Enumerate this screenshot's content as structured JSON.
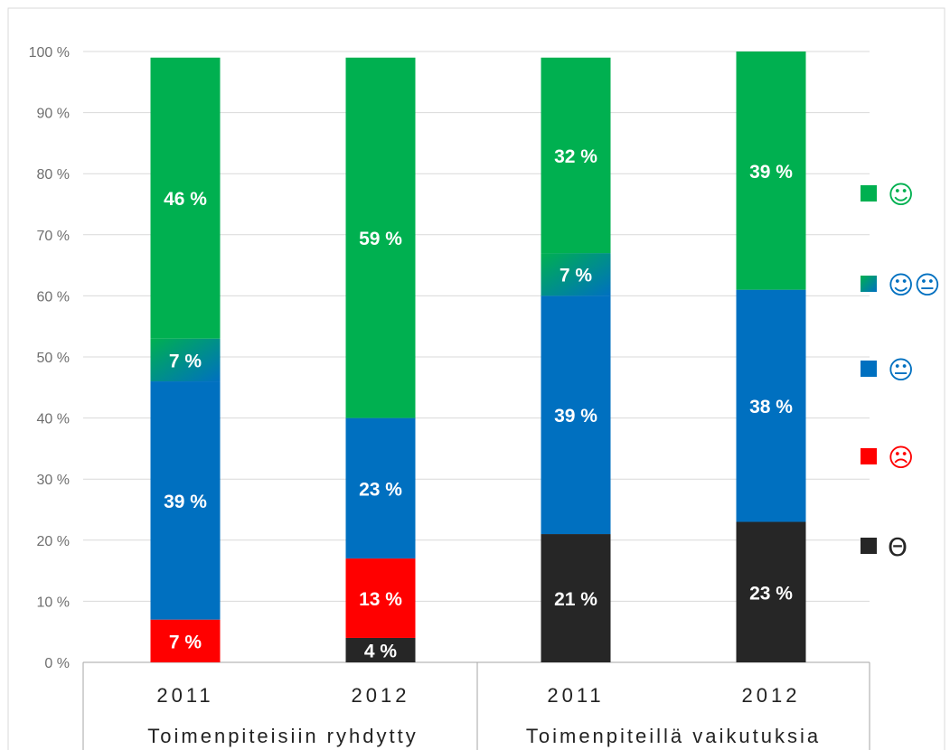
{
  "chart_data": {
    "type": "bar",
    "stacked": true,
    "ylim": [
      0,
      100
    ],
    "yticks": [
      "0 %",
      "10 %",
      "20 %",
      "30 %",
      "40 %",
      "50 %",
      "60 %",
      "70 %",
      "80 %",
      "90 %",
      "100 %"
    ],
    "grid": true,
    "legend_placement": "right",
    "categories": [
      "2011",
      "2012",
      "2011",
      "2012"
    ],
    "groups": [
      {
        "label": "Toimenpiteisiin ryhdytty",
        "categories": [
          0,
          1
        ]
      },
      {
        "label": "Toimenpiteillä vaikutuksia",
        "categories": [
          2,
          3
        ]
      }
    ],
    "series": [
      {
        "key": "none",
        "symbol": "Θ",
        "color": "#262626",
        "values": [
          0,
          4,
          21,
          23
        ],
        "labels": [
          "",
          "4 %",
          "21 %",
          "23 %"
        ]
      },
      {
        "key": "negative",
        "symbol": "☹",
        "color": "#ff0000",
        "values": [
          7,
          13,
          0,
          0
        ],
        "labels": [
          "7 %",
          "13 %",
          "",
          ""
        ]
      },
      {
        "key": "neutral",
        "symbol": "😐",
        "color": "#0070c0",
        "values": [
          39,
          23,
          39,
          38
        ],
        "labels": [
          "39 %",
          "23 %",
          "39 %",
          "38 %"
        ]
      },
      {
        "key": "mixed",
        "symbol": "☺😐",
        "color": "#4a82b0",
        "values": [
          7,
          0,
          7,
          0
        ],
        "labels": [
          "7 %",
          "",
          "7 %",
          ""
        ]
      },
      {
        "key": "positive",
        "symbol": "☺",
        "color": "#00b050",
        "values": [
          46,
          59,
          32,
          39
        ],
        "labels": [
          "46 %",
          "59 %",
          "32 %",
          "39 %"
        ]
      }
    ],
    "legend_order": [
      "positive",
      "mixed",
      "neutral",
      "negative",
      "none"
    ]
  }
}
